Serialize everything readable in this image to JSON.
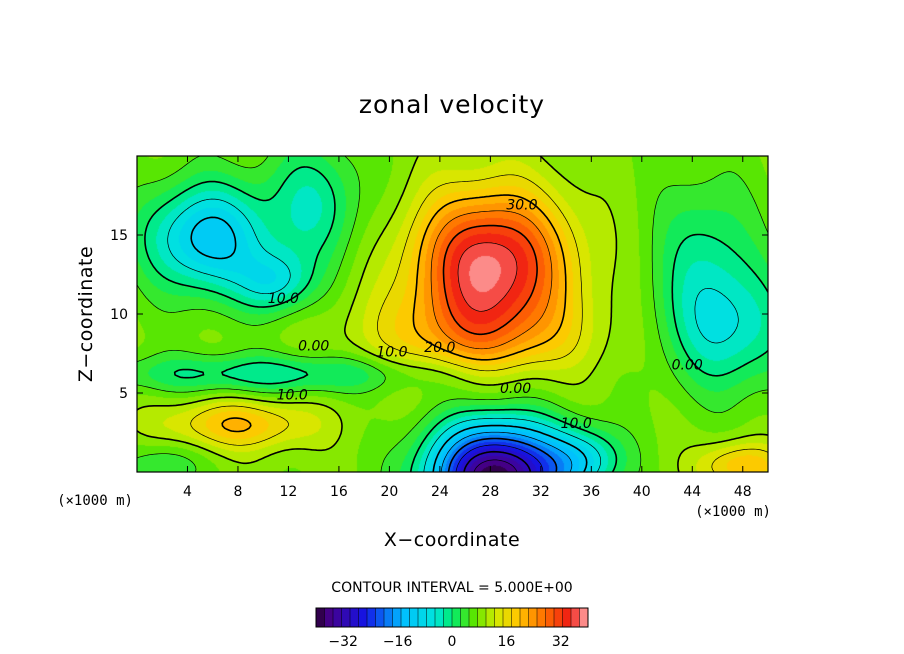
{
  "chart_data": {
    "type": "heatmap",
    "title": "zonal velocity",
    "xlabel": "X−coordinate",
    "ylabel": "Z−coordinate",
    "x_unit_left": "(×1000 m)",
    "x_unit_right": "(×1000 m)",
    "xlim": [
      0,
      50
    ],
    "ylim": [
      0,
      20
    ],
    "x_ticks": [
      4,
      8,
      12,
      16,
      20,
      24,
      28,
      32,
      36,
      40,
      44,
      48
    ],
    "y_ticks": [
      5,
      10,
      15
    ],
    "contour_interval_text": "CONTOUR INTERVAL = 5.000E+00",
    "contour_labels": [
      {
        "text": "30.0",
        "x": 30.5,
        "y": 16.6
      },
      {
        "text": "20.0",
        "x": 24.0,
        "y": 7.6
      },
      {
        "text": "10.0",
        "x": 20.2,
        "y": 7.3
      },
      {
        "text": "10.0",
        "x": 11.6,
        "y": 10.7
      },
      {
        "text": "0.00",
        "x": 14.0,
        "y": 7.7
      },
      {
        "text": "10.0",
        "x": 12.3,
        "y": 4.6
      },
      {
        "text": "0.00",
        "x": 30.0,
        "y": 5.0
      },
      {
        "text": "10.0",
        "x": 34.8,
        "y": 2.8
      },
      {
        "text": "0.00",
        "x": 43.6,
        "y": 6.5
      }
    ],
    "features": [
      {
        "kind": "max",
        "x": 28.0,
        "y": 13.0,
        "value": 38
      },
      {
        "kind": "min",
        "x": 28.0,
        "y": 0.5,
        "value": -38
      },
      {
        "kind": "min",
        "x": 5.5,
        "y": 14.5,
        "value": -12
      },
      {
        "kind": "max",
        "x": 8.0,
        "y": 3.0,
        "value": 22
      },
      {
        "kind": "max",
        "x": 48.0,
        "y": 0.6,
        "value": 21
      }
    ],
    "colorbar": {
      "min": -40,
      "max": 40,
      "ticks": [
        -32,
        -16,
        0,
        16,
        32
      ],
      "tick_labels": [
        "−32",
        "−16",
        "0",
        "16",
        "32"
      ]
    }
  }
}
